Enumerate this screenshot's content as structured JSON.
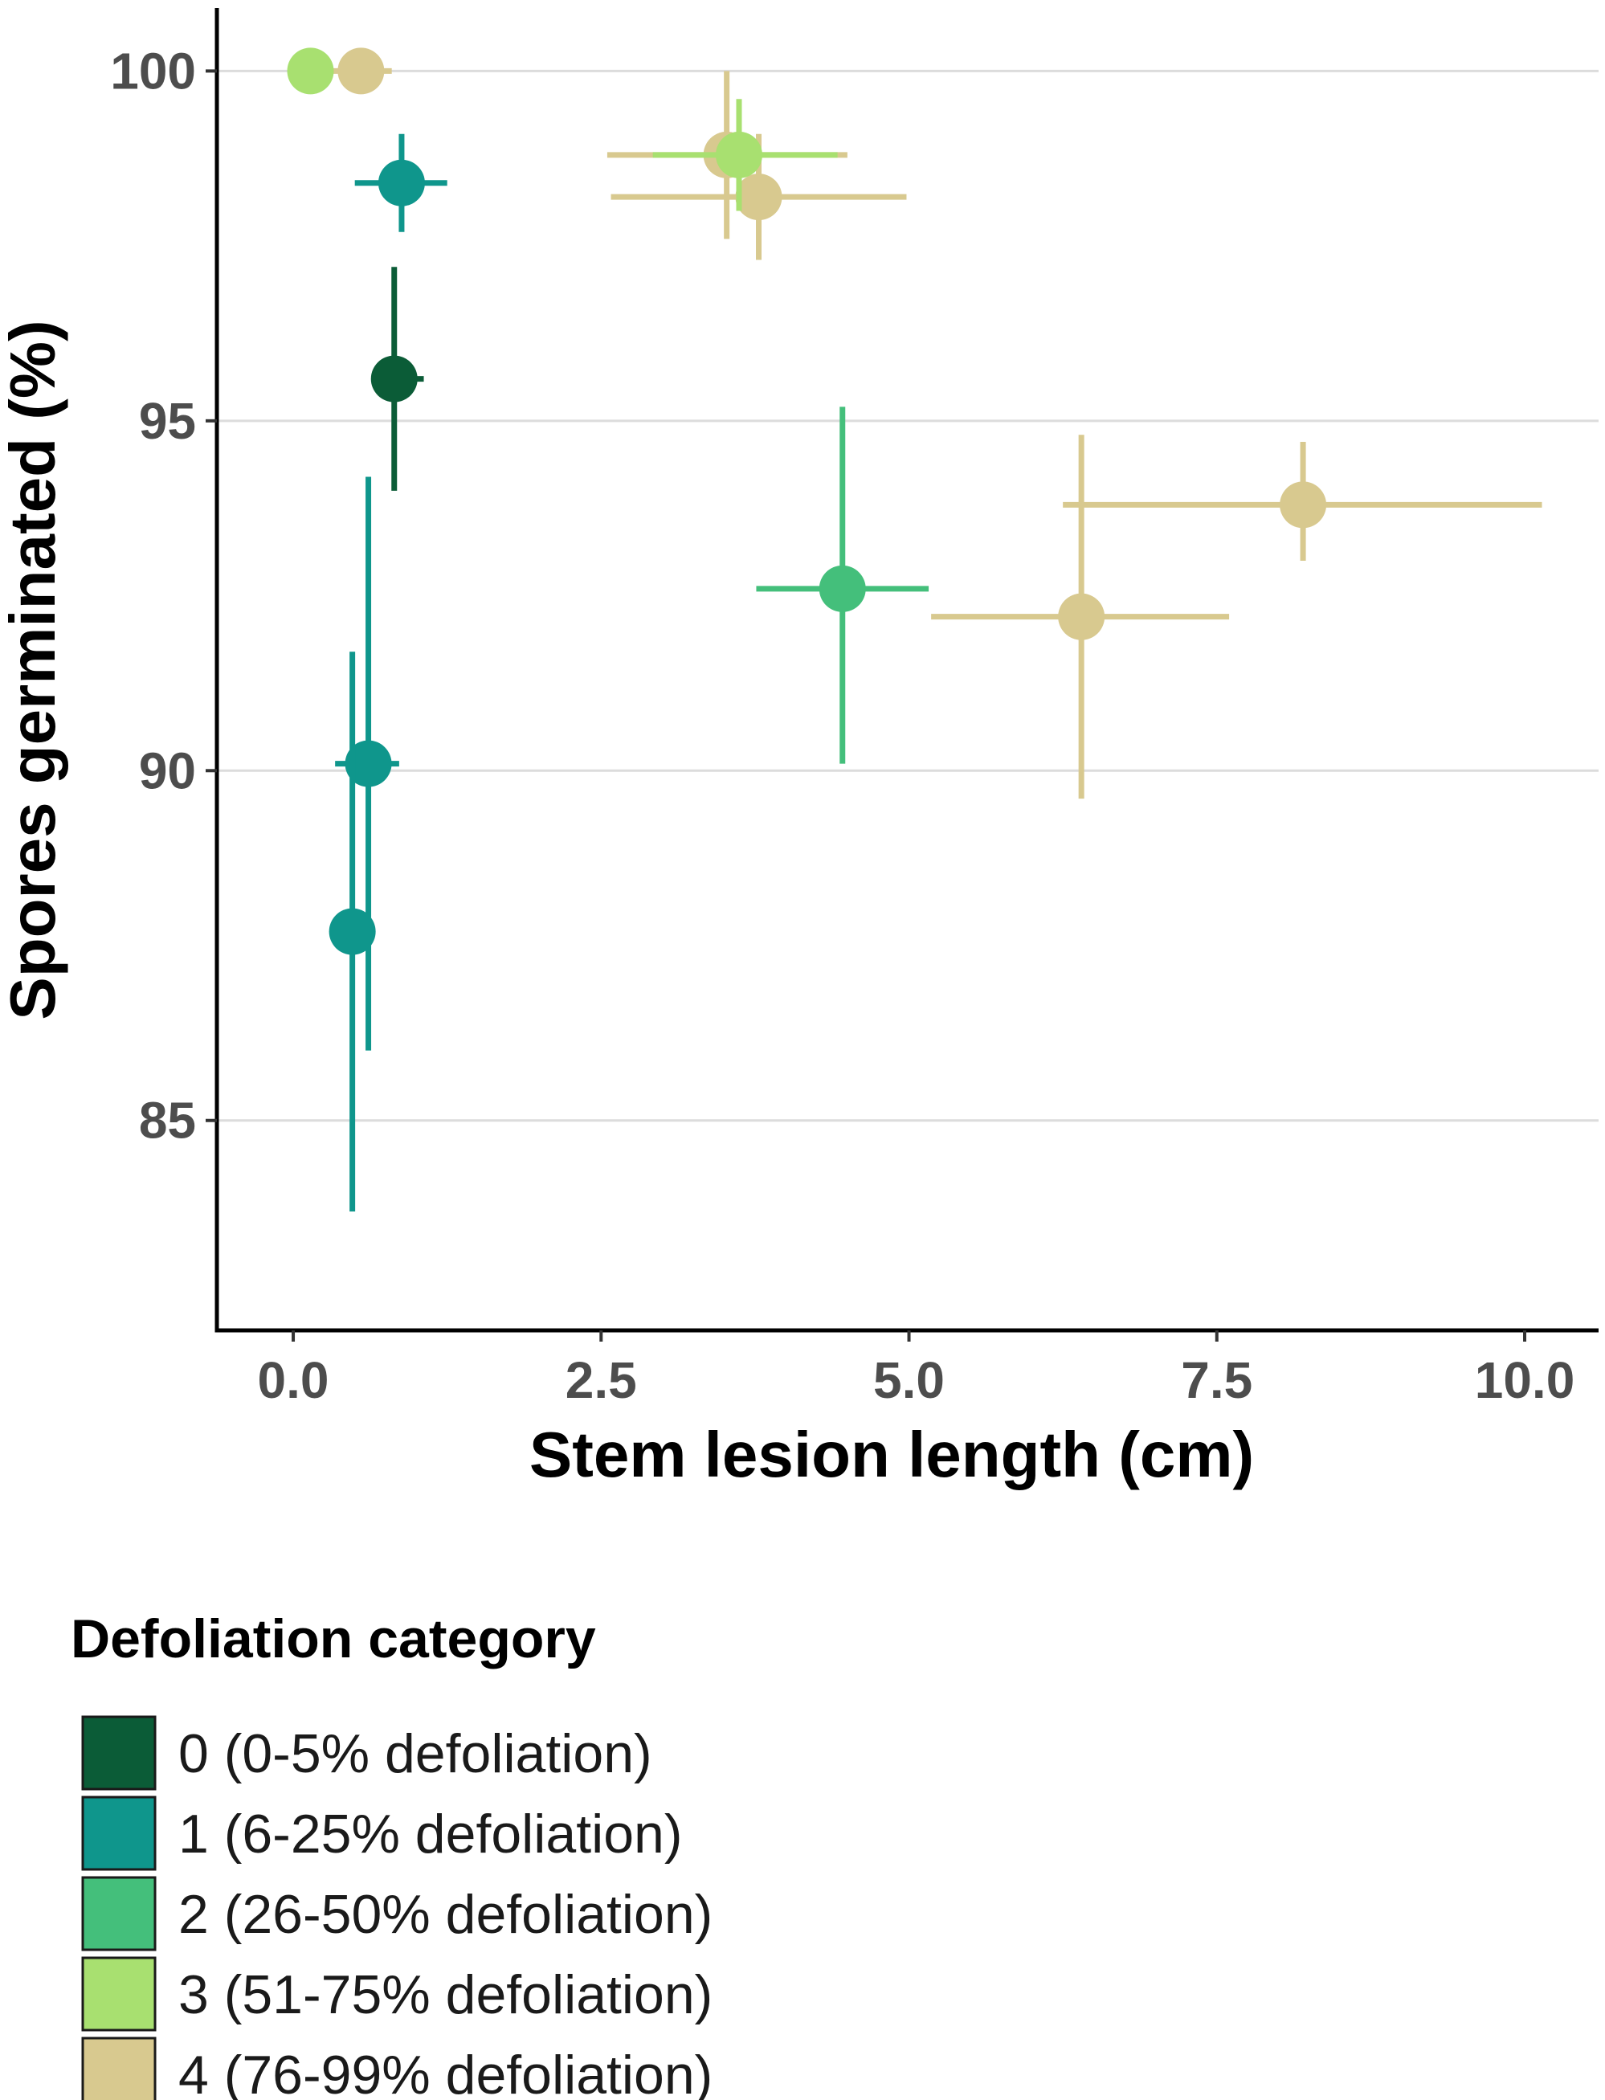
{
  "chart_data": {
    "type": "scatter",
    "xlabel": "Stem lesion length (cm)",
    "ylabel": "Spores germinated (%)",
    "xlim": [
      -0.62,
      10.6
    ],
    "ylim": [
      82.0,
      100.9
    ],
    "x_ticks": [
      0.0,
      2.5,
      5.0,
      7.5,
      10.0
    ],
    "x_tick_labels": [
      "0.0",
      "2.5",
      "5.0",
      "7.5",
      "10.0"
    ],
    "y_ticks": [
      85,
      90,
      95,
      100
    ],
    "y_tick_labels": [
      "85",
      "90",
      "95",
      "100"
    ],
    "grid": "horizontal major lines",
    "legend": {
      "title": "Defoliation category",
      "position": "bottom-left",
      "entries": [
        {
          "label": "0 (0-5% defoliation)",
          "color": "#0b5c37"
        },
        {
          "label": "1 (6-25% defoliation)",
          "color": "#0f968c"
        },
        {
          "label": "2 (26-50% defoliation)",
          "color": "#44bf7b"
        },
        {
          "label": "3 (51-75% defoliation)",
          "color": "#a8e070"
        },
        {
          "label": "4 (76-99% defoliation)",
          "color": "#d8c98f"
        }
      ]
    },
    "series": [
      {
        "category": 0,
        "color": "#0b5c37",
        "points": [
          {
            "x": 0.82,
            "y": 95.6,
            "x_err": [
              0.7,
              1.06
            ],
            "y_err": [
              94.0,
              97.2
            ]
          }
        ]
      },
      {
        "category": 1,
        "color": "#0f968c",
        "points": [
          {
            "x": 0.88,
            "y": 98.4,
            "x_err": [
              0.5,
              1.25
            ],
            "y_err": [
              97.7,
              99.1
            ]
          },
          {
            "x": 0.61,
            "y": 90.1,
            "x_err": [
              0.34,
              0.86
            ],
            "y_err": [
              86.0,
              94.2
            ]
          },
          {
            "x": 0.48,
            "y": 87.7,
            "x_err": [
              0.4,
              0.56
            ],
            "y_err": [
              83.7,
              91.7
            ]
          }
        ]
      },
      {
        "category": 2,
        "color": "#44bf7b",
        "points": [
          {
            "x": 4.46,
            "y": 92.6,
            "x_err": [
              3.76,
              5.16
            ],
            "y_err": [
              90.1,
              95.2
            ]
          }
        ]
      },
      {
        "category": 3,
        "color": "#a8e070",
        "points": [
          {
            "x": 0.14,
            "y": 100.0,
            "x_err": [
              0.06,
              0.22
            ],
            "y_err": [
              100.0,
              100.0
            ]
          },
          {
            "x": 3.62,
            "y": 98.8,
            "x_err": [
              2.92,
              4.42
            ],
            "y_err": [
              98.0,
              99.6
            ]
          }
        ]
      },
      {
        "category": 4,
        "color": "#d8c98f",
        "points": [
          {
            "x": 0.55,
            "y": 100.0,
            "x_err": [
              0.3,
              0.8
            ],
            "y_err": [
              100.0,
              100.0
            ]
          },
          {
            "x": 3.52,
            "y": 98.8,
            "x_err": [
              2.55,
              4.5
            ],
            "y_err": [
              97.6,
              100.0
            ]
          },
          {
            "x": 3.78,
            "y": 98.2,
            "x_err": [
              2.58,
              4.98
            ],
            "y_err": [
              97.3,
              99.1
            ]
          },
          {
            "x": 6.4,
            "y": 92.2,
            "x_err": [
              5.18,
              7.6
            ],
            "y_err": [
              89.6,
              94.8
            ]
          },
          {
            "x": 8.2,
            "y": 93.8,
            "x_err": [
              6.25,
              10.14
            ],
            "y_err": [
              93.0,
              94.7
            ]
          }
        ]
      }
    ]
  }
}
